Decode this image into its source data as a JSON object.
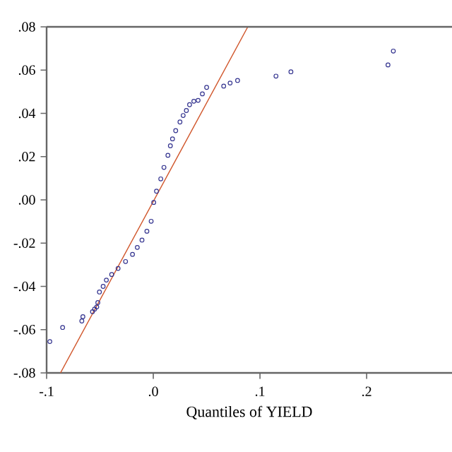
{
  "chart_data": {
    "type": "scatter",
    "xlabel": "Quantiles of YIELD",
    "xlim": [
      -0.1,
      0.28
    ],
    "ylim": [
      -0.08,
      0.08
    ],
    "xticks": [
      {
        "value": -0.1,
        "label": "-.1"
      },
      {
        "value": 0,
        "label": ".0"
      },
      {
        "value": 0.1,
        "label": ".1"
      },
      {
        "value": 0.2,
        "label": ".2"
      }
    ],
    "yticks": [
      {
        "value": -0.08,
        "label": "-.08"
      },
      {
        "value": -0.06,
        "label": "-.06"
      },
      {
        "value": -0.04,
        "label": "-.04"
      },
      {
        "value": -0.02,
        "label": "-.02"
      },
      {
        "value": 0,
        "label": ".00"
      },
      {
        "value": 0.02,
        "label": ".02"
      },
      {
        "value": 0.04,
        "label": ".04"
      },
      {
        "value": 0.06,
        "label": ".06"
      },
      {
        "value": 0.08,
        "label": ".08"
      }
    ],
    "marker": "circle",
    "grid": false,
    "series": [
      {
        "color": "#33338f",
        "x": [
          -0.097,
          -0.085,
          -0.067,
          -0.066,
          -0.057,
          -0.055,
          -0.053,
          -0.052,
          -0.0505,
          -0.047,
          -0.044,
          -0.039,
          -0.033,
          -0.026,
          -0.0195,
          -0.015,
          -0.0106,
          -0.006,
          -0.002,
          0.0004,
          0.003,
          0.007,
          0.01,
          0.0137,
          0.016,
          0.018,
          0.021,
          0.025,
          0.028,
          0.031,
          0.034,
          0.038,
          0.042,
          0.046,
          0.05,
          0.066,
          0.072,
          0.079,
          0.115,
          0.129,
          0.22,
          0.225
        ],
        "values": [
          -0.0655,
          -0.059,
          -0.056,
          -0.054,
          -0.0517,
          -0.0505,
          -0.0495,
          -0.0475,
          -0.0426,
          -0.04,
          -0.0371,
          -0.0345,
          -0.0317,
          -0.0285,
          -0.0252,
          -0.022,
          -0.0186,
          -0.0145,
          -0.0099,
          -0.0012,
          0.004,
          0.0097,
          0.015,
          0.0206,
          0.025,
          0.0282,
          0.032,
          0.036,
          0.039,
          0.0413,
          0.044,
          0.0456,
          0.046,
          0.049,
          0.052,
          0.0526,
          0.054,
          0.0552,
          0.0572,
          0.0592,
          0.0624,
          0.0688
        ]
      },
      {
        "type": "line",
        "marker": "none",
        "color": "#d0552a",
        "x": [
          -0.087,
          0.0886
        ],
        "values": [
          -0.08,
          0.08
        ]
      }
    ]
  }
}
